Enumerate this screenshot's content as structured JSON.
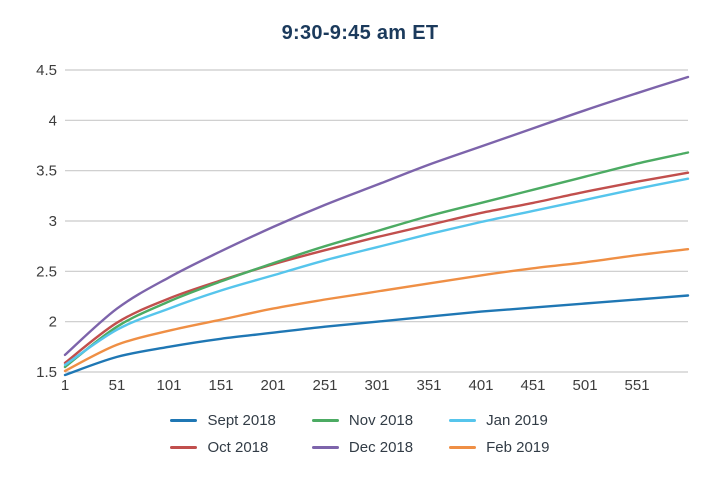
{
  "title": "9:30-9:45 am ET",
  "colors": {
    "title_text": "#1b3a5c",
    "axis_text": "#3d3d3d",
    "gridline": "#c9c9c9",
    "legend_text": "#323c46",
    "background": "#ffffff"
  },
  "chart_data": {
    "type": "line",
    "title": "9:30-9:45 am ET",
    "xlabel": "",
    "ylabel": "",
    "xlim": [
      1,
      600
    ],
    "ylim": [
      1.5,
      4.5
    ],
    "grid": true,
    "legend_position": "bottom",
    "x": [
      1,
      51,
      101,
      151,
      201,
      251,
      301,
      351,
      401,
      451,
      501,
      551,
      600
    ],
    "x_tick_labels": [
      "1",
      "51",
      "101",
      "151",
      "201",
      "251",
      "301",
      "351",
      "401",
      "451",
      "501",
      "551"
    ],
    "y_ticks": [
      "1.5",
      "2",
      "2.5",
      "3",
      "3.5",
      "4",
      "4.5"
    ],
    "series": [
      {
        "name": "Sept 2018",
        "color": "#1f77b4",
        "values": [
          1.47,
          1.65,
          1.75,
          1.83,
          1.89,
          1.95,
          2.0,
          2.05,
          2.1,
          2.14,
          2.18,
          2.22,
          2.26
        ]
      },
      {
        "name": "Oct 2018",
        "color": "#c14f4d",
        "values": [
          1.59,
          1.99,
          2.23,
          2.41,
          2.57,
          2.71,
          2.84,
          2.96,
          3.08,
          3.18,
          3.29,
          3.39,
          3.48
        ]
      },
      {
        "name": "Nov 2018",
        "color": "#4cab63",
        "values": [
          1.55,
          1.95,
          2.2,
          2.4,
          2.58,
          2.75,
          2.9,
          3.05,
          3.18,
          3.31,
          3.44,
          3.57,
          3.68
        ]
      },
      {
        "name": "Dec 2018",
        "color": "#7d64ab",
        "values": [
          1.67,
          2.13,
          2.44,
          2.7,
          2.94,
          3.16,
          3.36,
          3.56,
          3.74,
          3.92,
          4.1,
          4.27,
          4.43
        ]
      },
      {
        "name": "Jan 2019",
        "color": "#56c5ec",
        "values": [
          1.57,
          1.92,
          2.13,
          2.31,
          2.46,
          2.61,
          2.74,
          2.87,
          2.99,
          3.1,
          3.21,
          3.32,
          3.42
        ]
      },
      {
        "name": "Feb 2019",
        "color": "#ef8f45",
        "values": [
          1.51,
          1.77,
          1.91,
          2.02,
          2.13,
          2.22,
          2.3,
          2.38,
          2.46,
          2.53,
          2.59,
          2.66,
          2.72
        ]
      }
    ]
  }
}
